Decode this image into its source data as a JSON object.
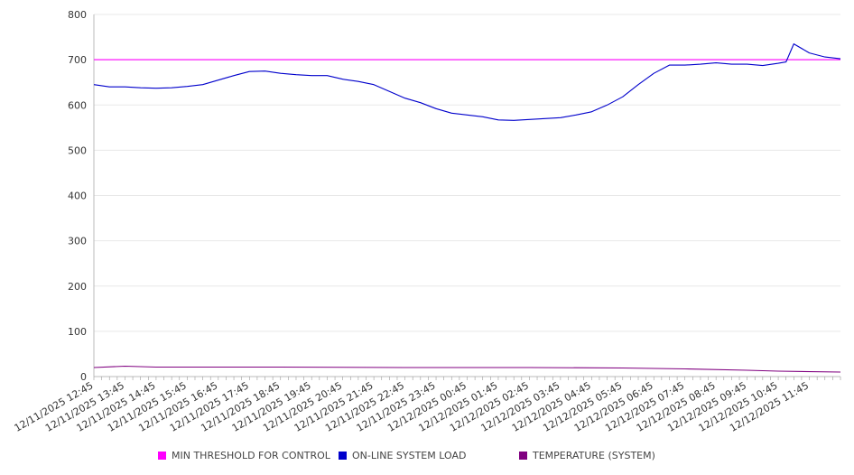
{
  "chart_data": {
    "type": "line",
    "ylim": [
      0,
      800
    ],
    "yticks": [
      0,
      100,
      200,
      300,
      400,
      500,
      600,
      700,
      800
    ],
    "grid": true,
    "legend_placement": "bottom",
    "tick_labels": [
      "12/11/2025 12:45",
      "12/11/2025 13:45",
      "12/11/2025 14:45",
      "12/11/2025 15:45",
      "12/11/2025 16:45",
      "12/11/2025 17:45",
      "12/11/2025 18:45",
      "12/11/2025 19:45",
      "12/11/2025 20:45",
      "12/11/2025 21:45",
      "12/11/2025 22:45",
      "12/11/2025 23:45",
      "12/12/2025 00:45",
      "12/12/2025 01:45",
      "12/12/2025 02:45",
      "12/12/2025 03:45",
      "12/12/2025 04:45",
      "12/12/2025 05:45",
      "12/12/2025 06:45",
      "12/12/2025 07:45",
      "12/12/2025 08:45",
      "12/12/2025 09:45",
      "12/12/2025 10:45",
      "12/12/2025 11:45"
    ],
    "x_start": "12/11/2025 12:45",
    "x_end": "12/12/2025 12:45",
    "series": [
      {
        "name": "MIN THRESHOLD FOR CONTROL",
        "color": "#ff00ff",
        "x": [
          "12/11/2025 12:45",
          "12/12/2025 12:45"
        ],
        "values": [
          700,
          700
        ]
      },
      {
        "name": "ON-LINE SYSTEM LOAD",
        "color": "#0000cc",
        "x": [
          "12/11/2025 12:45",
          "12/11/2025 13:15",
          "12/11/2025 13:45",
          "12/11/2025 14:15",
          "12/11/2025 14:45",
          "12/11/2025 15:15",
          "12/11/2025 15:45",
          "12/11/2025 16:15",
          "12/11/2025 16:45",
          "12/11/2025 17:15",
          "12/11/2025 17:45",
          "12/11/2025 18:15",
          "12/11/2025 18:45",
          "12/11/2025 19:15",
          "12/11/2025 19:45",
          "12/11/2025 20:15",
          "12/11/2025 20:45",
          "12/11/2025 21:15",
          "12/11/2025 21:45",
          "12/11/2025 22:15",
          "12/11/2025 22:45",
          "12/11/2025 23:15",
          "12/11/2025 23:45",
          "12/12/2025 00:15",
          "12/12/2025 00:45",
          "12/12/2025 01:15",
          "12/12/2025 01:45",
          "12/12/2025 02:15",
          "12/12/2025 02:45",
          "12/12/2025 03:15",
          "12/12/2025 03:45",
          "12/12/2025 04:15",
          "12/12/2025 04:45",
          "12/12/2025 05:15",
          "12/12/2025 05:45",
          "12/12/2025 06:15",
          "12/12/2025 06:45",
          "12/12/2025 07:15",
          "12/12/2025 07:45",
          "12/12/2025 08:15",
          "12/12/2025 08:45",
          "12/12/2025 09:15",
          "12/12/2025 09:45",
          "12/12/2025 10:15",
          "12/12/2025 10:45",
          "12/12/2025 11:00",
          "12/12/2025 11:15",
          "12/12/2025 11:45",
          "12/12/2025 12:15",
          "12/12/2025 12:45"
        ],
        "values": [
          645,
          640,
          640,
          638,
          637,
          638,
          641,
          645,
          655,
          665,
          674,
          675,
          670,
          667,
          665,
          665,
          657,
          652,
          645,
          630,
          615,
          605,
          592,
          582,
          578,
          574,
          567,
          566,
          568,
          570,
          572,
          578,
          585,
          600,
          618,
          645,
          670,
          688,
          688,
          690,
          693,
          690,
          690,
          687,
          692,
          695,
          735,
          715,
          706,
          702
        ]
      },
      {
        "name": "TEMPERATURE (SYSTEM)",
        "color": "#800080",
        "x": [
          "12/11/2025 12:45",
          "12/11/2025 13:45",
          "12/11/2025 14:45",
          "12/11/2025 18:45",
          "12/11/2025 22:45",
          "12/12/2025 02:45",
          "12/12/2025 05:45",
          "12/12/2025 07:45",
          "12/12/2025 09:45",
          "12/12/2025 10:45",
          "12/12/2025 12:45"
        ],
        "values": [
          20,
          23,
          21,
          21,
          20,
          20,
          19,
          17,
          14,
          12,
          10
        ]
      }
    ]
  }
}
